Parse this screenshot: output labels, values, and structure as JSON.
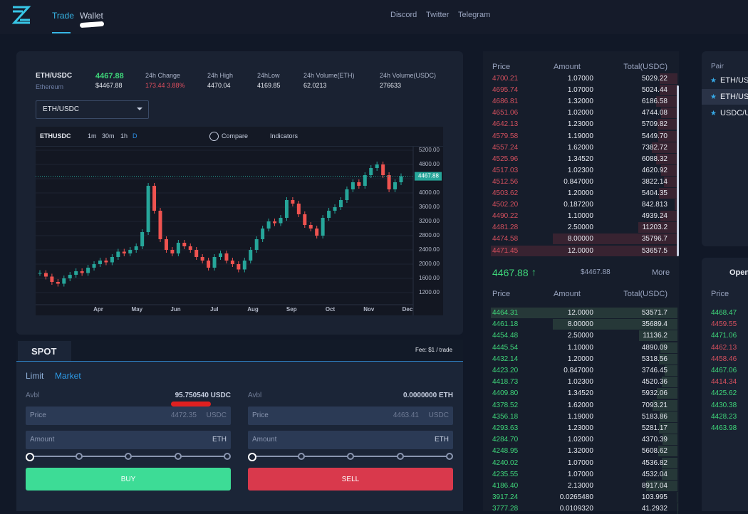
{
  "nav": {
    "links": [
      "Trade",
      "Wallet"
    ],
    "social": [
      "Discord",
      "Twitter",
      "Telegram"
    ]
  },
  "ticker": {
    "pair": "ETH/USDC",
    "name": "Ethereum",
    "price": "4467.88",
    "price_usd": "$4467.88",
    "stats": [
      {
        "label": "24h Change",
        "value": "173.44 3.88%"
      },
      {
        "label": "24h High",
        "value": "4470.04"
      },
      {
        "label": "24hLow",
        "value": "4169.85"
      },
      {
        "label": "24h Volume(ETH)",
        "value": "62.0213"
      },
      {
        "label": "24h Volume(USDC)",
        "value": "276633"
      }
    ],
    "select": "ETH/USDC"
  },
  "chart_toolbar": {
    "symbol": "ETHUSDC",
    "intervals": [
      "1m",
      "30m",
      "1h",
      "D"
    ],
    "compare": "Compare",
    "indicators": "Indicators"
  },
  "chart_data": {
    "type": "candlestick",
    "categories": [
      "Apr",
      "May",
      "Jun",
      "Jul",
      "Aug",
      "Sep",
      "Oct",
      "Nov",
      "Dec"
    ],
    "closes": [
      1750,
      1650,
      1500,
      1450,
      1600,
      1700,
      1800,
      1750,
      1900,
      2000,
      2100,
      2050,
      2200,
      2350,
      2300,
      2400,
      2500,
      2900,
      4200,
      3500,
      2700,
      2400,
      2300,
      2600,
      2500,
      2400,
      2200,
      2100,
      1900,
      2200,
      2300,
      2100,
      2000,
      1850,
      2100,
      2400,
      2700,
      3000,
      3200,
      3150,
      3300,
      3800,
      3700,
      3400,
      3100,
      3000,
      2800,
      3300,
      3500,
      3600,
      3800,
      4100,
      4300,
      4200,
      4500,
      4700,
      4800,
      4500,
      4100,
      4300,
      4467.88
    ],
    "up_color": "#26a69a",
    "down_color": "#ef5350",
    "ylim": [
      860,
      5320
    ],
    "yticks": [
      {
        "value": 1200,
        "label": "1200.00"
      },
      {
        "value": 1600,
        "label": "1600.00"
      },
      {
        "value": 2000,
        "label": "2000.00"
      },
      {
        "value": 2400,
        "label": "2400.00"
      },
      {
        "value": 2800,
        "label": "2800.00"
      },
      {
        "value": 3200,
        "label": "3200.00"
      },
      {
        "value": 3600,
        "label": "3600.00"
      },
      {
        "value": 4000,
        "label": "4000.00"
      },
      {
        "value": 4400,
        "label": "4400.00"
      },
      {
        "value": 4800,
        "label": "4800.00"
      },
      {
        "value": 5200,
        "label": "5200.00"
      }
    ]
  },
  "order_book": {
    "headers": [
      "Price",
      "Amount",
      "Total(USDC)"
    ],
    "asks": [
      [
        "4700.21",
        "1.07000",
        "5029.22"
      ],
      [
        "4695.74",
        "1.07000",
        "5024.44"
      ],
      [
        "4686.81",
        "1.32000",
        "6186.58"
      ],
      [
        "4651.06",
        "1.02000",
        "4744.08"
      ],
      [
        "4642.13",
        "1.23000",
        "5709.82"
      ],
      [
        "4579.58",
        "1.19000",
        "5449.70"
      ],
      [
        "4557.24",
        "1.62000",
        "7382.72"
      ],
      [
        "4525.96",
        "1.34520",
        "6088.32"
      ],
      [
        "4517.03",
        "1.02300",
        "4620.92"
      ],
      [
        "4512.56",
        "0.847000",
        "3822.14"
      ],
      [
        "4503.62",
        "1.20000",
        "5404.35"
      ],
      [
        "4502.20",
        "0.187200",
        "842.813"
      ],
      [
        "4490.22",
        "1.10000",
        "4939.24"
      ],
      [
        "4481.28",
        "2.50000",
        "11203.2"
      ],
      [
        "4474.58",
        "8.00000",
        "35796.7"
      ],
      [
        "4471.45",
        "12.0000",
        "53657.5"
      ]
    ],
    "mid": {
      "price": "4467.88",
      "arrow": "↑",
      "usd": "$4467.88",
      "more": "More"
    },
    "bids": [
      [
        "4464.31",
        "12.0000",
        "53571.7"
      ],
      [
        "4461.18",
        "8.00000",
        "35689.4"
      ],
      [
        "4454.48",
        "2.50000",
        "11136.2"
      ],
      [
        "4445.54",
        "1.10000",
        "4890.09"
      ],
      [
        "4432.14",
        "1.20000",
        "5318.56"
      ],
      [
        "4423.20",
        "0.847000",
        "3746.45"
      ],
      [
        "4418.73",
        "1.02300",
        "4520.36"
      ],
      [
        "4409.80",
        "1.34520",
        "5932.06"
      ],
      [
        "4378.52",
        "1.62000",
        "7093.21"
      ],
      [
        "4356.18",
        "1.19000",
        "5183.86"
      ],
      [
        "4293.63",
        "1.23000",
        "5281.17"
      ],
      [
        "4284.70",
        "1.02000",
        "4370.39"
      ],
      [
        "4248.95",
        "1.32000",
        "5608.62"
      ],
      [
        "4240.02",
        "1.07000",
        "4536.82"
      ],
      [
        "4235.55",
        "1.07000",
        "4532.04"
      ],
      [
        "4186.40",
        "2.13000",
        "8917.04"
      ],
      [
        "3917.24",
        "0.0265480",
        "103.995"
      ],
      [
        "3777.28",
        "0.0109320",
        "41.2932"
      ]
    ]
  },
  "spot": {
    "tab": "SPOT",
    "fee": "Fee: $1 / trade",
    "modes": [
      "Limit",
      "Market"
    ],
    "buy": {
      "avbl_label": "Avbl",
      "avbl": "95.750540 USDC",
      "price_label": "Price",
      "price": "4472.35",
      "price_unit": "USDC",
      "amount_label": "Amount",
      "amount_unit": "ETH",
      "button": "BUY"
    },
    "sell": {
      "avbl_label": "Avbl",
      "avbl": "0.0000000 ETH",
      "price_label": "Price",
      "price": "4463.41",
      "price_unit": "USDC",
      "amount_label": "Amount",
      "amount_unit": "ETH",
      "button": "SELL"
    }
  },
  "pairs": {
    "title": "Pair",
    "items": [
      "ETH/USDC",
      "ETH/USDC",
      "USDC/USDT"
    ]
  },
  "orders": {
    "title": "Open Orders",
    "header": "Price",
    "prices": [
      "4468.47",
      "4459.55",
      "4471.06",
      "4462.13",
      "4458.46",
      "4467.06",
      "4414.34",
      "4425.62",
      "4430.38",
      "4428.23",
      "4463.98"
    ],
    "sides": [
      "buy",
      "sell",
      "buy",
      "sell",
      "sell",
      "buy",
      "sell",
      "buy",
      "buy",
      "buy",
      "buy"
    ]
  }
}
